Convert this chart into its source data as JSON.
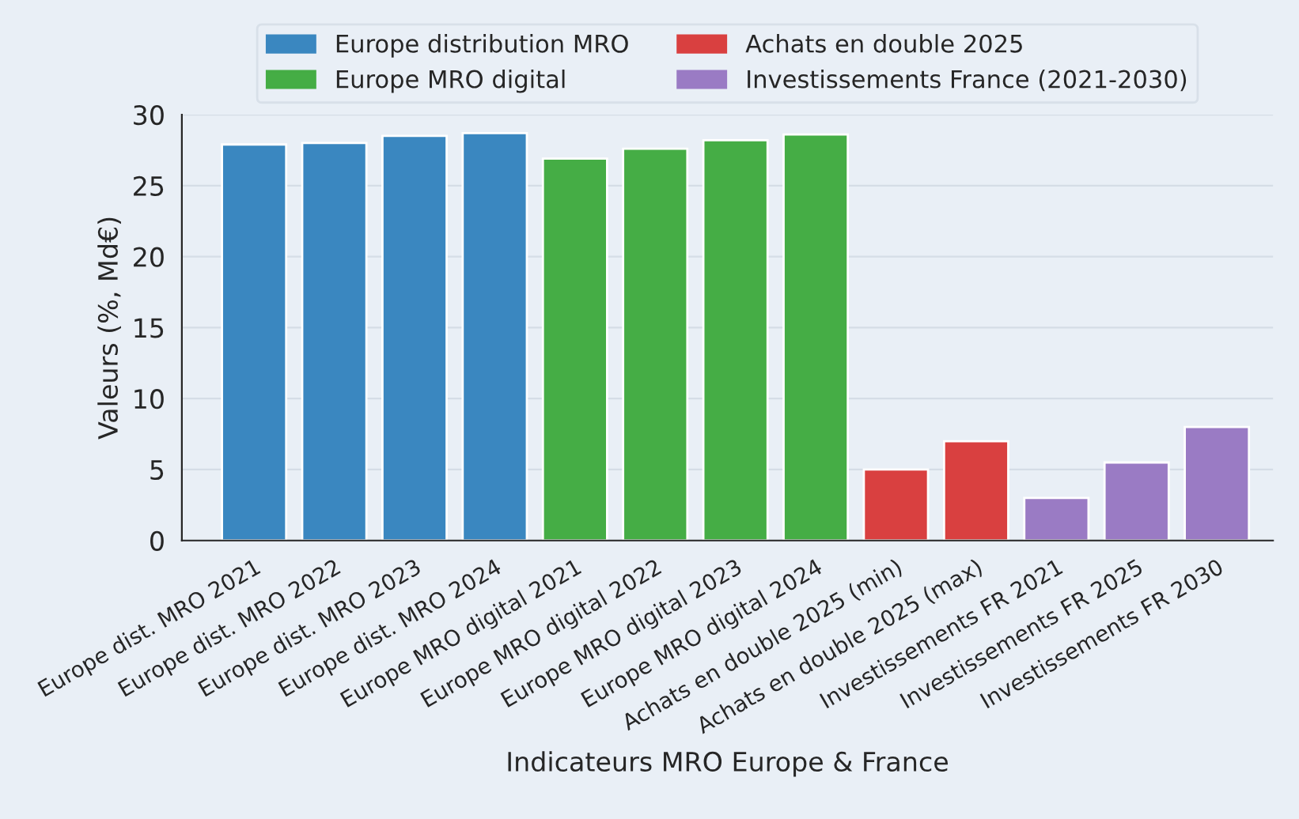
{
  "chart_data": {
    "type": "bar",
    "xlabel": "Indicateurs MRO Europe & France",
    "ylabel": "Valeurs (%, Md€)",
    "categories": [
      "Europe dist. MRO 2021",
      "Europe dist. MRO 2022",
      "Europe dist. MRO 2023",
      "Europe dist. MRO 2024",
      "Europe MRO digital 2021",
      "Europe MRO digital 2022",
      "Europe MRO digital 2023",
      "Europe MRO digital 2024",
      "Achats en double 2025 (min)",
      "Achats en double 2025 (max)",
      "Investissements FR 2021",
      "Investissements FR 2025",
      "Investissements FR 2030"
    ],
    "series": [
      {
        "name": "Europe distribution MRO",
        "color": "#3a87c0",
        "values": [
          27.9,
          28.0,
          28.5,
          28.7,
          null,
          null,
          null,
          null,
          null,
          null,
          null,
          null,
          null
        ]
      },
      {
        "name": "Europe MRO digital",
        "color": "#45ad45",
        "values": [
          null,
          null,
          null,
          null,
          26.9,
          27.6,
          28.2,
          28.6,
          null,
          null,
          null,
          null,
          null
        ]
      },
      {
        "name": "Achats en double 2025",
        "color": "#d94040",
        "values": [
          null,
          null,
          null,
          null,
          null,
          null,
          null,
          null,
          5,
          7,
          null,
          null,
          null
        ]
      },
      {
        "name": "Investissements France (2021-2030)",
        "color": "#9a7bc4",
        "values": [
          null,
          null,
          null,
          null,
          null,
          null,
          null,
          null,
          null,
          null,
          3,
          5.5,
          8
        ]
      }
    ],
    "ylim": [
      0,
      30
    ],
    "yticks": [
      0,
      5,
      10,
      15,
      20,
      25,
      30
    ],
    "grid": "y",
    "legend": "top"
  }
}
